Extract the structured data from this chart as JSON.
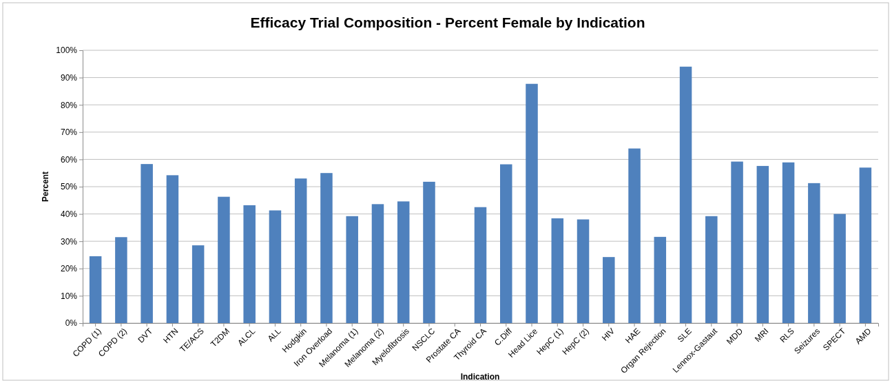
{
  "chart_data": {
    "type": "bar",
    "title": "Efficacy Trial Composition - Percent Female by Indication",
    "xlabel": "Indication",
    "ylabel": "Percent",
    "categories": [
      "COPD (1)",
      "COPD (2)",
      "DVT",
      "HTN",
      "TE/ACS",
      "T2DM",
      "ALCL",
      "ALL",
      "Hodgkin",
      "Iron Overload",
      "Melanoma (1)",
      "Melanoma (2)",
      "Myelofibrosis",
      "NSCLC",
      "Prostate CA",
      "Thyroid CA",
      "C.Diff",
      "Head Lice",
      "HepC (1)",
      "HepC (2)",
      "HIV",
      "HAE",
      "Organ Rejection",
      "SLE",
      "Lennox-Gastaut",
      "MDD",
      "MRI",
      "RLS",
      "Seizures",
      "SPECT",
      "AMD"
    ],
    "values": [
      24.5,
      31.5,
      58.3,
      54.2,
      28.5,
      46.3,
      43.2,
      41.3,
      53,
      55,
      39.2,
      43.6,
      44.6,
      51.8,
      0,
      42.5,
      58.2,
      87.7,
      38.4,
      38,
      24.2,
      64,
      31.6,
      94,
      39.2,
      59.2,
      57.6,
      58.9,
      51.3,
      40,
      57
    ],
    "color": "#4f81bd",
    "ylim": [
      0,
      100
    ],
    "yticks": [
      {
        "value": 0,
        "label": "0%"
      },
      {
        "value": 10,
        "label": "10%"
      },
      {
        "value": 20,
        "label": "20%"
      },
      {
        "value": 30,
        "label": "30%"
      },
      {
        "value": 40,
        "label": "40%"
      },
      {
        "value": 50,
        "label": "50%"
      },
      {
        "value": 60,
        "label": "60%"
      },
      {
        "value": 70,
        "label": "70%"
      },
      {
        "value": 80,
        "label": "80%"
      },
      {
        "value": 90,
        "label": "90%"
      },
      {
        "value": 100,
        "label": "100%"
      }
    ],
    "grid": "y",
    "legend": false
  }
}
